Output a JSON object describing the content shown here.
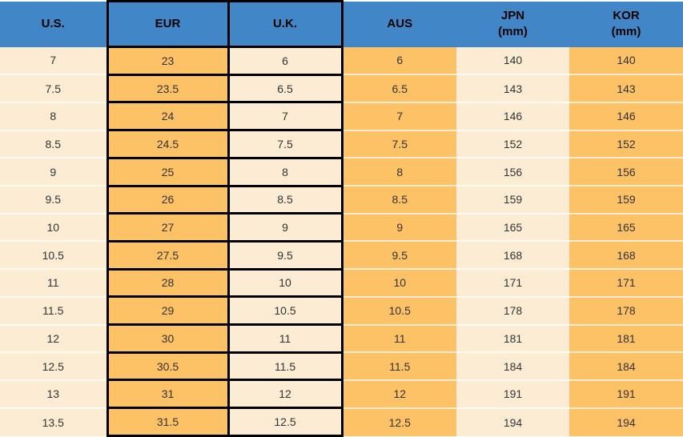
{
  "chart_data": {
    "type": "table",
    "columns": [
      {
        "label": "U.S.",
        "sub": ""
      },
      {
        "label": "EUR",
        "sub": ""
      },
      {
        "label": "U.K.",
        "sub": ""
      },
      {
        "label": "AUS",
        "sub": ""
      },
      {
        "label": "JPN",
        "sub": "(mm)"
      },
      {
        "label": "KOR",
        "sub": "(mm)"
      }
    ],
    "rows": [
      [
        "7",
        "23",
        "6",
        "6",
        "140",
        "140"
      ],
      [
        "7.5",
        "23.5",
        "6.5",
        "6.5",
        "143",
        "143"
      ],
      [
        "8",
        "24",
        "7",
        "7",
        "146",
        "146"
      ],
      [
        "8.5",
        "24.5",
        "7.5",
        "7.5",
        "152",
        "152"
      ],
      [
        "9",
        "25",
        "8",
        "8",
        "156",
        "156"
      ],
      [
        "9.5",
        "26",
        "8.5",
        "8.5",
        "159",
        "159"
      ],
      [
        "10",
        "27",
        "9",
        "9",
        "165",
        "165"
      ],
      [
        "10.5",
        "27.5",
        "9.5",
        "9.5",
        "168",
        "168"
      ],
      [
        "11",
        "28",
        "10",
        "10",
        "171",
        "171"
      ],
      [
        "11.5",
        "29",
        "10.5",
        "10.5",
        "178",
        "178"
      ],
      [
        "12",
        "30",
        "11",
        "11",
        "181",
        "181"
      ],
      [
        "12.5",
        "30.5",
        "11.5",
        "11.5",
        "184",
        "184"
      ],
      [
        "13",
        "31",
        "12",
        "12",
        "191",
        "191"
      ],
      [
        "13.5",
        "31.5",
        "12.5",
        "12.5",
        "194",
        "194"
      ]
    ],
    "layout_hints": {
      "boxed_columns": [
        "EUR",
        "U.K."
      ],
      "cream_columns": [
        "U.S.",
        "U.K.",
        "JPN"
      ],
      "orange_columns": [
        "EUR",
        "AUS",
        "KOR"
      ]
    }
  },
  "colors": {
    "header_bg": "#4187C7",
    "header_text": "#000000",
    "cell_cream": "#FCECD3",
    "cell_orange": "#FDC166",
    "black_border": "#000000",
    "row_separator": "rgba(255,255,255,0.7)",
    "body_text": "#333333"
  }
}
